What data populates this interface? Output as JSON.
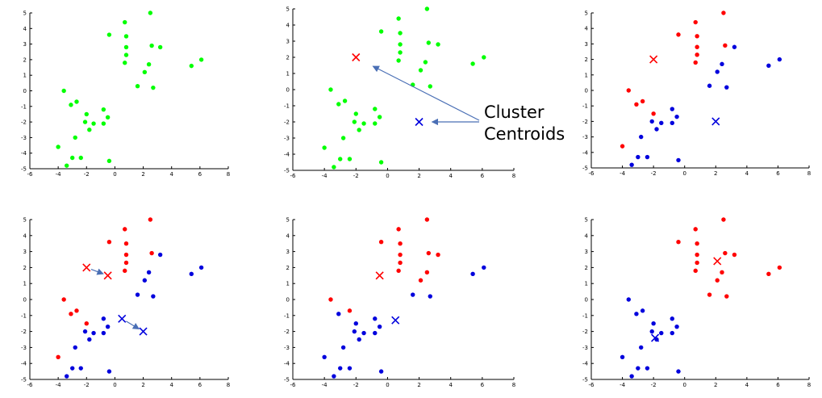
{
  "colors": {
    "green": "#00ff00",
    "red": "#ff0000",
    "blue": "#0000dd",
    "axis": "#000000",
    "arrow": "#4a6fb5"
  },
  "annotation": {
    "line1": "Cluster",
    "line2": "Centroids"
  },
  "chart_data": [
    {
      "type": "scatter",
      "title": "",
      "xlim": [
        -6,
        8
      ],
      "ylim": [
        -5,
        5
      ],
      "xticks": [
        "-6",
        "-4",
        "-2",
        "0",
        "2",
        "4",
        "6",
        "8"
      ],
      "yticks": [
        "-5",
        "-4",
        "-3",
        "-2",
        "-1",
        "0",
        "1",
        "2",
        "3",
        "4",
        "5"
      ],
      "grid": false,
      "series": [
        {
          "color": "green",
          "points": [
            [
              -4.0,
              -3.6
            ],
            [
              -3.6,
              0.0
            ],
            [
              -3.4,
              -4.8
            ],
            [
              -3.1,
              -0.9
            ],
            [
              -3.0,
              -4.3
            ],
            [
              -2.8,
              -3.0
            ],
            [
              -2.7,
              -0.7
            ],
            [
              -2.4,
              -4.3
            ],
            [
              -2.1,
              -2.0
            ],
            [
              -2.0,
              -1.5
            ],
            [
              -1.8,
              -2.5
            ],
            [
              -1.5,
              -2.1
            ],
            [
              -0.8,
              -1.2
            ],
            [
              -0.8,
              -2.1
            ],
            [
              -0.5,
              -1.7
            ],
            [
              -0.4,
              -4.5
            ],
            [
              -0.4,
              3.6
            ],
            [
              0.7,
              4.4
            ],
            [
              0.8,
              3.5
            ],
            [
              0.8,
              2.8
            ],
            [
              0.8,
              2.3
            ],
            [
              0.7,
              1.8
            ],
            [
              1.6,
              0.3
            ],
            [
              2.1,
              1.2
            ],
            [
              2.4,
              1.7
            ],
            [
              2.5,
              5.0
            ],
            [
              2.6,
              2.9
            ],
            [
              2.7,
              0.2
            ],
            [
              3.2,
              2.8
            ],
            [
              5.4,
              1.6
            ],
            [
              6.1,
              2.0
            ]
          ]
        }
      ],
      "centroids": []
    },
    {
      "type": "scatter",
      "title": "",
      "xlim": [
        -6,
        8
      ],
      "ylim": [
        -5,
        5
      ],
      "xticks": [
        "-6",
        "-4",
        "-2",
        "0",
        "2",
        "4",
        "6",
        "8"
      ],
      "yticks": [
        "-5",
        "-4",
        "-3",
        "-2",
        "-1",
        "0",
        "1",
        "2",
        "3",
        "4",
        "5"
      ],
      "grid": false,
      "series": [
        {
          "color": "green",
          "points": [
            [
              -4.0,
              -3.6
            ],
            [
              -3.6,
              0.0
            ],
            [
              -3.4,
              -4.8
            ],
            [
              -3.1,
              -0.9
            ],
            [
              -3.0,
              -4.3
            ],
            [
              -2.8,
              -3.0
            ],
            [
              -2.7,
              -0.7
            ],
            [
              -2.4,
              -4.3
            ],
            [
              -2.1,
              -2.0
            ],
            [
              -2.0,
              -1.5
            ],
            [
              -1.8,
              -2.5
            ],
            [
              -1.5,
              -2.1
            ],
            [
              -0.8,
              -1.2
            ],
            [
              -0.8,
              -2.1
            ],
            [
              -0.5,
              -1.7
            ],
            [
              -0.4,
              -4.5
            ],
            [
              -0.4,
              3.6
            ],
            [
              0.7,
              4.4
            ],
            [
              0.8,
              3.5
            ],
            [
              0.8,
              2.8
            ],
            [
              0.8,
              2.3
            ],
            [
              0.7,
              1.8
            ],
            [
              1.6,
              0.3
            ],
            [
              2.1,
              1.2
            ],
            [
              2.4,
              1.7
            ],
            [
              2.5,
              5.0
            ],
            [
              2.6,
              2.9
            ],
            [
              2.7,
              0.2
            ],
            [
              3.2,
              2.8
            ],
            [
              5.4,
              1.6
            ],
            [
              6.1,
              2.0
            ]
          ]
        }
      ],
      "centroids": [
        {
          "color": "red",
          "x": -2.0,
          "y": 2.0
        },
        {
          "color": "blue",
          "x": 2.0,
          "y": -2.0
        }
      ]
    },
    {
      "type": "scatter",
      "title": "",
      "xlim": [
        -6,
        8
      ],
      "ylim": [
        -5,
        5
      ],
      "xticks": [
        "-6",
        "-4",
        "-2",
        "0",
        "2",
        "4",
        "6",
        "8"
      ],
      "yticks": [
        "-5",
        "-4",
        "-3",
        "-2",
        "-1",
        "0",
        "1",
        "2",
        "3",
        "4",
        "5"
      ],
      "grid": false,
      "series": [
        {
          "color": "red",
          "points": [
            [
              -4.0,
              -3.6
            ],
            [
              -3.6,
              0.0
            ],
            [
              -3.1,
              -0.9
            ],
            [
              -2.7,
              -0.7
            ],
            [
              -2.0,
              -1.5
            ],
            [
              -0.4,
              3.6
            ],
            [
              0.7,
              4.4
            ],
            [
              0.8,
              3.5
            ],
            [
              0.8,
              2.8
            ],
            [
              0.8,
              2.3
            ],
            [
              0.7,
              1.8
            ],
            [
              2.5,
              5.0
            ],
            [
              2.6,
              2.9
            ]
          ]
        },
        {
          "color": "blue",
          "points": [
            [
              -3.4,
              -4.8
            ],
            [
              -3.0,
              -4.3
            ],
            [
              -2.8,
              -3.0
            ],
            [
              -2.4,
              -4.3
            ],
            [
              -2.1,
              -2.0
            ],
            [
              -1.8,
              -2.5
            ],
            [
              -1.5,
              -2.1
            ],
            [
              -0.8,
              -1.2
            ],
            [
              -0.8,
              -2.1
            ],
            [
              -0.5,
              -1.7
            ],
            [
              -0.4,
              -4.5
            ],
            [
              1.6,
              0.3
            ],
            [
              2.1,
              1.2
            ],
            [
              2.4,
              1.7
            ],
            [
              2.7,
              0.2
            ],
            [
              3.2,
              2.8
            ],
            [
              5.4,
              1.6
            ],
            [
              6.1,
              2.0
            ]
          ]
        }
      ],
      "centroids": [
        {
          "color": "red",
          "x": -2.0,
          "y": 2.0
        },
        {
          "color": "blue",
          "x": 2.0,
          "y": -2.0
        }
      ]
    },
    {
      "type": "scatter",
      "title": "",
      "xlim": [
        -6,
        8
      ],
      "ylim": [
        -5,
        5
      ],
      "xticks": [
        "-6",
        "-4",
        "-2",
        "0",
        "2",
        "4",
        "6",
        "8"
      ],
      "yticks": [
        "-5",
        "-4",
        "-3",
        "-2",
        "-1",
        "0",
        "1",
        "2",
        "3",
        "4",
        "5"
      ],
      "grid": false,
      "series": [
        {
          "color": "red",
          "points": [
            [
              -4.0,
              -3.6
            ],
            [
              -3.6,
              0.0
            ],
            [
              -3.1,
              -0.9
            ],
            [
              -2.7,
              -0.7
            ],
            [
              -2.0,
              -1.5
            ],
            [
              -0.4,
              3.6
            ],
            [
              0.7,
              4.4
            ],
            [
              0.8,
              3.5
            ],
            [
              0.8,
              2.8
            ],
            [
              0.8,
              2.3
            ],
            [
              0.7,
              1.8
            ],
            [
              2.5,
              5.0
            ],
            [
              2.6,
              2.9
            ]
          ]
        },
        {
          "color": "blue",
          "points": [
            [
              -3.4,
              -4.8
            ],
            [
              -3.0,
              -4.3
            ],
            [
              -2.8,
              -3.0
            ],
            [
              -2.4,
              -4.3
            ],
            [
              -2.1,
              -2.0
            ],
            [
              -1.8,
              -2.5
            ],
            [
              -1.5,
              -2.1
            ],
            [
              -0.8,
              -1.2
            ],
            [
              -0.8,
              -2.1
            ],
            [
              -0.5,
              -1.7
            ],
            [
              -0.4,
              -4.5
            ],
            [
              1.6,
              0.3
            ],
            [
              2.1,
              1.2
            ],
            [
              2.4,
              1.7
            ],
            [
              2.7,
              0.2
            ],
            [
              3.2,
              2.8
            ],
            [
              5.4,
              1.6
            ],
            [
              6.1,
              2.0
            ]
          ]
        }
      ],
      "centroids": [
        {
          "color": "red",
          "x": -2.0,
          "y": 2.0
        },
        {
          "color": "blue",
          "x": 0.5,
          "y": -1.2
        },
        {
          "color": "red",
          "x": -0.5,
          "y": 1.5
        },
        {
          "color": "blue",
          "x": 2.0,
          "y": -2.0
        }
      ],
      "moves": [
        {
          "from": [
            -2.0,
            2.0
          ],
          "to": [
            -0.5,
            1.5
          ]
        },
        {
          "from": [
            0.5,
            -1.2
          ],
          "to": [
            2.0,
            -2.0
          ]
        }
      ]
    },
    {
      "type": "scatter",
      "title": "",
      "xlim": [
        -6,
        8
      ],
      "ylim": [
        -5,
        5
      ],
      "xticks": [
        "-6",
        "-4",
        "-2",
        "0",
        "2",
        "4",
        "6",
        "8"
      ],
      "yticks": [
        "-5",
        "-4",
        "-3",
        "-2",
        "-1",
        "0",
        "1",
        "2",
        "3",
        "4",
        "5"
      ],
      "grid": false,
      "series": [
        {
          "color": "red",
          "points": [
            [
              -3.6,
              0.0
            ],
            [
              -2.4,
              -0.7
            ],
            [
              -0.4,
              3.6
            ],
            [
              0.7,
              4.4
            ],
            [
              0.8,
              3.5
            ],
            [
              0.8,
              2.8
            ],
            [
              0.8,
              2.3
            ],
            [
              0.7,
              1.8
            ],
            [
              2.1,
              1.2
            ],
            [
              2.5,
              5.0
            ],
            [
              2.6,
              2.9
            ],
            [
              2.5,
              1.7
            ],
            [
              3.2,
              2.8
            ]
          ]
        },
        {
          "color": "blue",
          "points": [
            [
              -4.0,
              -3.6
            ],
            [
              -3.4,
              -4.8
            ],
            [
              -3.1,
              -0.9
            ],
            [
              -3.0,
              -4.3
            ],
            [
              -2.8,
              -3.0
            ],
            [
              -2.4,
              -4.3
            ],
            [
              -2.1,
              -2.0
            ],
            [
              -2.0,
              -1.5
            ],
            [
              -1.8,
              -2.5
            ],
            [
              -1.5,
              -2.1
            ],
            [
              -0.8,
              -1.2
            ],
            [
              -0.8,
              -2.1
            ],
            [
              -0.5,
              -1.7
            ],
            [
              -0.4,
              -4.5
            ],
            [
              1.6,
              0.3
            ],
            [
              2.7,
              0.2
            ],
            [
              5.4,
              1.6
            ],
            [
              6.1,
              2.0
            ]
          ]
        }
      ],
      "centroids": [
        {
          "color": "red",
          "x": -0.5,
          "y": 1.5
        },
        {
          "color": "blue",
          "x": 0.5,
          "y": -1.3
        }
      ]
    },
    {
      "type": "scatter",
      "title": "",
      "xlim": [
        -6,
        8
      ],
      "ylim": [
        -5,
        5
      ],
      "xticks": [
        "-6",
        "-4",
        "-2",
        "0",
        "2",
        "4",
        "6",
        "8"
      ],
      "yticks": [
        "-5",
        "-4",
        "-3",
        "-2",
        "-1",
        "0",
        "1",
        "2",
        "3",
        "4",
        "5"
      ],
      "grid": false,
      "series": [
        {
          "color": "red",
          "points": [
            [
              -0.4,
              3.6
            ],
            [
              0.7,
              4.4
            ],
            [
              0.8,
              3.5
            ],
            [
              0.8,
              2.8
            ],
            [
              0.8,
              2.3
            ],
            [
              0.7,
              1.8
            ],
            [
              1.6,
              0.3
            ],
            [
              2.1,
              1.2
            ],
            [
              2.4,
              1.7
            ],
            [
              2.5,
              5.0
            ],
            [
              2.6,
              2.9
            ],
            [
              2.7,
              0.2
            ],
            [
              3.2,
              2.8
            ],
            [
              5.4,
              1.6
            ],
            [
              6.1,
              2.0
            ]
          ]
        },
        {
          "color": "blue",
          "points": [
            [
              -4.0,
              -3.6
            ],
            [
              -3.6,
              0.0
            ],
            [
              -3.4,
              -4.8
            ],
            [
              -3.1,
              -0.9
            ],
            [
              -3.0,
              -4.3
            ],
            [
              -2.8,
              -3.0
            ],
            [
              -2.7,
              -0.7
            ],
            [
              -2.4,
              -4.3
            ],
            [
              -2.1,
              -2.0
            ],
            [
              -2.0,
              -1.5
            ],
            [
              -1.8,
              -2.5
            ],
            [
              -1.5,
              -2.1
            ],
            [
              -0.8,
              -1.2
            ],
            [
              -0.8,
              -2.1
            ],
            [
              -0.5,
              -1.7
            ],
            [
              -0.4,
              -4.5
            ]
          ]
        }
      ],
      "centroids": [
        {
          "color": "red",
          "x": 2.1,
          "y": 2.4
        },
        {
          "color": "blue",
          "x": -1.9,
          "y": -2.4
        }
      ]
    }
  ]
}
